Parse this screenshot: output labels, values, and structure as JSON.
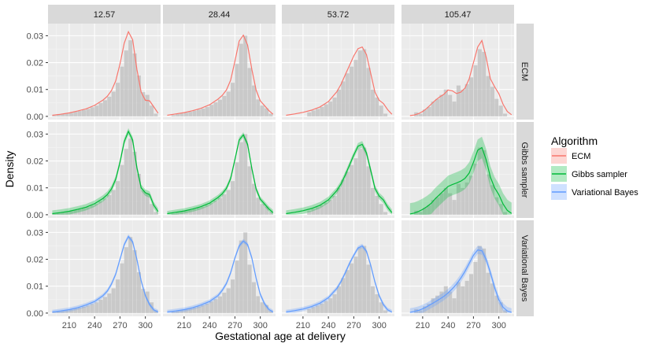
{
  "chart_data": {
    "type": "line",
    "xlabel": "Gestational age at delivery",
    "ylabel": "Density",
    "xlim": [
      185,
      318
    ],
    "ylim": [
      -0.0012,
      0.0345
    ],
    "x_ticks": [
      210,
      240,
      270,
      300
    ],
    "y_ticks": [
      0.0,
      0.01,
      0.02,
      0.03
    ],
    "y_tick_labels": [
      "0.00",
      "0.01",
      "0.02",
      "0.03"
    ],
    "columns": [
      "12.57",
      "28.44",
      "53.72",
      "105.47"
    ],
    "rows": [
      "ECM",
      "Gibbs sampler",
      "Variational Bayes"
    ],
    "legend": {
      "title": "Algorithm",
      "position": "right",
      "entries": [
        {
          "name": "ECM",
          "color": "#F8766D"
        },
        {
          "name": "Gibbs sampler",
          "color": "#00BA38"
        },
        {
          "name": "Variational Bayes",
          "color": "#619CFF"
        }
      ]
    },
    "histograms": {
      "12.57": {
        "bin_width": 5,
        "bins": [
          [
            190,
            0.0003
          ],
          [
            195,
            0.0008
          ],
          [
            200,
            0.001
          ],
          [
            205,
            0.001
          ],
          [
            210,
            0.0013
          ],
          [
            215,
            0.0017
          ],
          [
            220,
            0.002
          ],
          [
            225,
            0.0024
          ],
          [
            230,
            0.0028
          ],
          [
            235,
            0.0034
          ],
          [
            240,
            0.004
          ],
          [
            245,
            0.005
          ],
          [
            250,
            0.006
          ],
          [
            255,
            0.0073
          ],
          [
            260,
            0.0092
          ],
          [
            265,
            0.0125
          ],
          [
            270,
            0.0185
          ],
          [
            275,
            0.0245
          ],
          [
            280,
            0.0283
          ],
          [
            285,
            0.0234
          ],
          [
            290,
            0.0152
          ],
          [
            295,
            0.009
          ],
          [
            300,
            0.008
          ],
          [
            305,
            0.004
          ],
          [
            310,
            0.001
          ]
        ]
      },
      "28.44": {
        "bin_width": 5,
        "bins": [
          [
            195,
            0.0005
          ],
          [
            200,
            0.0009
          ],
          [
            205,
            0.0011
          ],
          [
            210,
            0.0014
          ],
          [
            215,
            0.0017
          ],
          [
            220,
            0.0021
          ],
          [
            225,
            0.0025
          ],
          [
            230,
            0.0029
          ],
          [
            235,
            0.0035
          ],
          [
            240,
            0.0043
          ],
          [
            245,
            0.0052
          ],
          [
            250,
            0.0062
          ],
          [
            255,
            0.0076
          ],
          [
            260,
            0.0092
          ],
          [
            265,
            0.0125
          ],
          [
            270,
            0.0195
          ],
          [
            275,
            0.027
          ],
          [
            280,
            0.03
          ],
          [
            285,
            0.018
          ],
          [
            290,
            0.0115
          ],
          [
            295,
            0.0063
          ],
          [
            300,
            0.004
          ],
          [
            305,
            0.003
          ],
          [
            310,
            0.001
          ]
        ]
      },
      "53.72": {
        "bin_width": 5,
        "bins": [
          [
            215,
            0.0015
          ],
          [
            220,
            0.0022
          ],
          [
            225,
            0.0028
          ],
          [
            230,
            0.0035
          ],
          [
            235,
            0.0045
          ],
          [
            240,
            0.0055
          ],
          [
            245,
            0.007
          ],
          [
            250,
            0.01
          ],
          [
            255,
            0.013
          ],
          [
            260,
            0.016
          ],
          [
            265,
            0.0185
          ],
          [
            270,
            0.021
          ],
          [
            275,
            0.0245
          ],
          [
            280,
            0.025
          ],
          [
            285,
            0.018
          ],
          [
            290,
            0.01
          ],
          [
            295,
            0.007
          ],
          [
            300,
            0.004
          ],
          [
            305,
            0.001
          ]
        ]
      },
      "105.47": {
        "bin_width": 5,
        "bins": [
          [
            200,
            0.0015
          ],
          [
            205,
            0.001
          ],
          [
            210,
            0.0025
          ],
          [
            215,
            0.0035
          ],
          [
            220,
            0.0055
          ],
          [
            225,
            0.0065
          ],
          [
            230,
            0.008
          ],
          [
            235,
            0.01
          ],
          [
            240,
            0.008
          ],
          [
            245,
            0.0055
          ],
          [
            250,
            0.0115
          ],
          [
            255,
            0.01
          ],
          [
            260,
            0.012
          ],
          [
            265,
            0.0145
          ],
          [
            270,
            0.019
          ],
          [
            275,
            0.025
          ],
          [
            280,
            0.024
          ],
          [
            285,
            0.015
          ],
          [
            290,
            0.011
          ],
          [
            295,
            0.0065
          ],
          [
            300,
            0.004
          ],
          [
            305,
            0.001
          ]
        ]
      }
    },
    "series": [
      {
        "name": "ECM",
        "column": "12.57",
        "row": "ECM",
        "band": 0,
        "x": [
          190,
          200,
          210,
          220,
          230,
          240,
          250,
          255,
          260,
          265,
          270,
          275,
          280,
          285,
          290,
          295,
          300,
          305,
          310,
          315
        ],
        "y": [
          0.0004,
          0.0008,
          0.0013,
          0.002,
          0.0028,
          0.0041,
          0.0061,
          0.0075,
          0.0096,
          0.0132,
          0.0195,
          0.0272,
          0.0315,
          0.0285,
          0.0175,
          0.009,
          0.006,
          0.0058,
          0.0035,
          0.0012
        ]
      },
      {
        "name": "Gibbs sampler",
        "column": "12.57",
        "row": "Gibbs sampler",
        "band": 0.0012,
        "x": [
          190,
          200,
          210,
          220,
          230,
          240,
          250,
          255,
          260,
          265,
          270,
          275,
          280,
          285,
          290,
          295,
          300,
          305,
          310,
          315
        ],
        "y": [
          0.0004,
          0.0008,
          0.0013,
          0.002,
          0.0028,
          0.0041,
          0.0061,
          0.0075,
          0.0096,
          0.0132,
          0.0195,
          0.0272,
          0.031,
          0.0278,
          0.0175,
          0.01,
          0.0082,
          0.0075,
          0.0035,
          0.0012
        ]
      },
      {
        "name": "Variational Bayes",
        "column": "12.57",
        "row": "Variational Bayes",
        "band": 0.0008,
        "x": [
          190,
          200,
          210,
          220,
          230,
          240,
          250,
          255,
          260,
          265,
          270,
          275,
          280,
          285,
          290,
          295,
          300,
          305,
          310,
          315
        ],
        "y": [
          0.0004,
          0.0008,
          0.0013,
          0.002,
          0.003,
          0.0043,
          0.0065,
          0.0082,
          0.0108,
          0.0145,
          0.02,
          0.0255,
          0.0285,
          0.0265,
          0.02,
          0.012,
          0.0065,
          0.0032,
          0.0012,
          0.0004
        ]
      },
      {
        "name": "ECM",
        "column": "28.44",
        "row": "ECM",
        "band": 0,
        "x": [
          190,
          200,
          210,
          220,
          230,
          240,
          250,
          255,
          260,
          265,
          270,
          275,
          280,
          285,
          290,
          295,
          300,
          305,
          310,
          315
        ],
        "y": [
          0.0004,
          0.0009,
          0.0014,
          0.0021,
          0.003,
          0.0043,
          0.0064,
          0.0078,
          0.0098,
          0.0135,
          0.0205,
          0.028,
          0.0302,
          0.0265,
          0.0175,
          0.0098,
          0.0058,
          0.004,
          0.0022,
          0.0008
        ]
      },
      {
        "name": "Gibbs sampler",
        "column": "28.44",
        "row": "Gibbs sampler",
        "band": 0.001,
        "x": [
          190,
          200,
          210,
          220,
          230,
          240,
          250,
          255,
          260,
          265,
          270,
          275,
          280,
          285,
          290,
          295,
          300,
          305,
          310,
          315
        ],
        "y": [
          0.0004,
          0.0009,
          0.0014,
          0.0021,
          0.003,
          0.0043,
          0.0064,
          0.0078,
          0.0098,
          0.0135,
          0.0205,
          0.0278,
          0.0297,
          0.0262,
          0.0172,
          0.0096,
          0.0058,
          0.004,
          0.0022,
          0.0008
        ]
      },
      {
        "name": "Variational Bayes",
        "column": "28.44",
        "row": "Variational Bayes",
        "band": 0.0008,
        "x": [
          190,
          200,
          210,
          220,
          230,
          240,
          250,
          255,
          260,
          265,
          270,
          275,
          280,
          285,
          290,
          295,
          300,
          305,
          310,
          315
        ],
        "y": [
          0.0004,
          0.0008,
          0.0013,
          0.002,
          0.003,
          0.0043,
          0.0065,
          0.0085,
          0.011,
          0.015,
          0.0205,
          0.025,
          0.0268,
          0.0255,
          0.0205,
          0.013,
          0.007,
          0.0035,
          0.0014,
          0.0004
        ]
      },
      {
        "name": "ECM",
        "column": "53.72",
        "row": "ECM",
        "band": 0,
        "x": [
          190,
          200,
          210,
          220,
          230,
          240,
          250,
          255,
          260,
          265,
          270,
          275,
          280,
          285,
          290,
          295,
          300,
          305,
          310,
          315
        ],
        "y": [
          0.0004,
          0.0009,
          0.0015,
          0.0023,
          0.0035,
          0.0055,
          0.0092,
          0.012,
          0.0155,
          0.019,
          0.0225,
          0.0252,
          0.0258,
          0.023,
          0.016,
          0.009,
          0.006,
          0.0048,
          0.0025,
          0.0008
        ]
      },
      {
        "name": "Gibbs sampler",
        "column": "53.72",
        "row": "Gibbs sampler",
        "band": 0.0012,
        "x": [
          190,
          200,
          210,
          220,
          230,
          240,
          250,
          255,
          260,
          265,
          270,
          275,
          280,
          285,
          290,
          295,
          300,
          305,
          310,
          315
        ],
        "y": [
          0.0004,
          0.0009,
          0.0015,
          0.0023,
          0.0035,
          0.0055,
          0.009,
          0.0115,
          0.0148,
          0.0185,
          0.0222,
          0.0255,
          0.0262,
          0.023,
          0.0165,
          0.0098,
          0.007,
          0.0055,
          0.0028,
          0.0008
        ]
      },
      {
        "name": "Variational Bayes",
        "column": "53.72",
        "row": "Variational Bayes",
        "band": 0.0008,
        "x": [
          190,
          200,
          210,
          220,
          230,
          240,
          250,
          255,
          260,
          265,
          270,
          275,
          280,
          285,
          290,
          295,
          300,
          305,
          310,
          315
        ],
        "y": [
          0.0004,
          0.0009,
          0.0015,
          0.0024,
          0.0037,
          0.0057,
          0.0092,
          0.0118,
          0.015,
          0.0185,
          0.0215,
          0.0242,
          0.025,
          0.023,
          0.0178,
          0.0115,
          0.0065,
          0.0032,
          0.0012,
          0.0004
        ]
      },
      {
        "name": "ECM",
        "column": "105.47",
        "row": "ECM",
        "band": 0,
        "x": [
          195,
          200,
          205,
          210,
          215,
          220,
          225,
          230,
          235,
          240,
          245,
          250,
          255,
          260,
          265,
          270,
          275,
          280,
          285,
          290,
          295,
          300,
          305,
          310,
          315
        ],
        "y": [
          0.0003,
          0.0005,
          0.001,
          0.0018,
          0.003,
          0.0045,
          0.006,
          0.0072,
          0.0082,
          0.0098,
          0.0095,
          0.0085,
          0.009,
          0.0105,
          0.014,
          0.02,
          0.0258,
          0.0282,
          0.022,
          0.014,
          0.011,
          0.0085,
          0.0045,
          0.0018,
          0.0006
        ]
      },
      {
        "name": "Gibbs sampler",
        "column": "105.47",
        "row": "Gibbs sampler",
        "band": 0.004,
        "x": [
          195,
          200,
          205,
          210,
          215,
          220,
          225,
          230,
          235,
          240,
          245,
          250,
          255,
          260,
          265,
          270,
          275,
          280,
          285,
          290,
          295,
          300,
          305,
          310,
          315
        ],
        "y": [
          0.0003,
          0.0006,
          0.0012,
          0.002,
          0.003,
          0.0042,
          0.006,
          0.0075,
          0.009,
          0.0105,
          0.0112,
          0.0118,
          0.0125,
          0.0135,
          0.0155,
          0.0195,
          0.024,
          0.025,
          0.0205,
          0.014,
          0.01,
          0.0075,
          0.004,
          0.0016,
          0.0005
        ]
      },
      {
        "name": "Variational Bayes",
        "column": "105.47",
        "row": "Variational Bayes",
        "band": 0.0015,
        "x": [
          195,
          200,
          205,
          210,
          215,
          220,
          225,
          230,
          235,
          240,
          245,
          250,
          255,
          260,
          265,
          270,
          275,
          280,
          285,
          290,
          295,
          300,
          305,
          310,
          315
        ],
        "y": [
          0.0003,
          0.0006,
          0.001,
          0.0016,
          0.0024,
          0.0033,
          0.0042,
          0.0052,
          0.0062,
          0.0075,
          0.009,
          0.0108,
          0.013,
          0.0155,
          0.0185,
          0.0215,
          0.0235,
          0.0232,
          0.02,
          0.015,
          0.0095,
          0.005,
          0.0022,
          0.0008,
          0.0003
        ]
      }
    ]
  }
}
